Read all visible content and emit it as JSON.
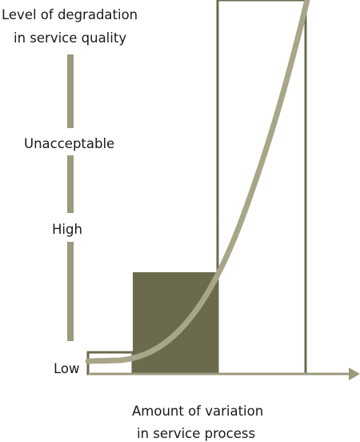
{
  "diagram": {
    "y_axis_title": {
      "line1": "Level of degradation",
      "line2": "in service quality"
    },
    "levels": {
      "unacceptable": "Unacceptable",
      "high": "High",
      "low": "Low"
    },
    "x_axis_title": {
      "line1": "Amount of variation",
      "line2": "in service process"
    },
    "colors": {
      "axis": "#9c9a7c",
      "curve": "#a8a688",
      "filled_box": "#6b6a4d",
      "outline_box": "#6b6a4d",
      "text": "#1a1a1a"
    }
  }
}
